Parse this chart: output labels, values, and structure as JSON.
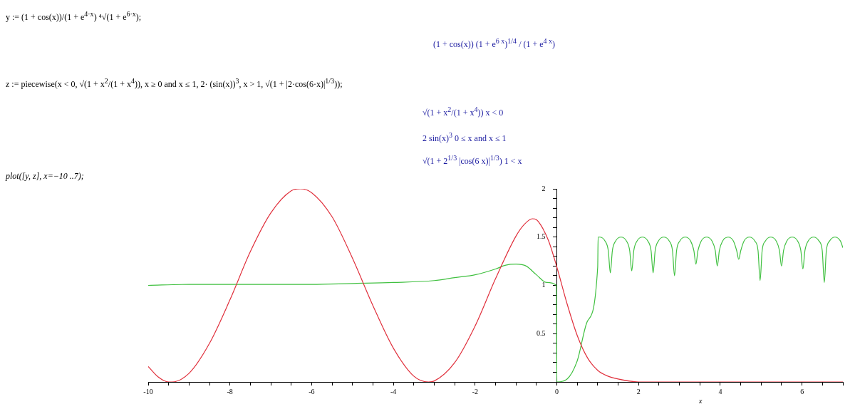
{
  "chart_data": {
    "type": "line",
    "annotations": [
      "y := (1 + cos(x))/(1 + e$^{4·x}$) ⁴√(1 + e$^{6·x}$);",
      "(1 + cos(x)) (1 + e$^{6 x}$)$^{1/4}$ / (1 + e$^{4 x}$)",
      "z := piecewise(x < 0, √(1 + x$^{2}$/(1 + x$^{4}$)), x ≥ 0 and x ≤ 1, 2· (sin(x))$^{3}$, x > 1, √(1 + |2·cos(6·x)|$^{1/3}$));",
      "√(1 + x$^{2}$/(1 + x$^{4}$))     x < 0",
      "2 sin(x)$^{3}$     0 ≤ x and x ≤ 1",
      "√(1 + 2$^{1/3}$ |cos(6 x)|$^{1/3}$)     1 < x",
      "plot([y, z], x=−10 ..7);"
    ],
    "xlabel": "x",
    "xlim": [
      -10,
      7
    ],
    "xticks": [
      -10,
      {
        "value": -9.5,
        "label": null
      },
      {
        "value": -9,
        "label": null
      },
      {
        "value": -8.5,
        "label": null
      },
      -8,
      {
        "value": -7.5,
        "label": null
      },
      {
        "value": -7,
        "label": null
      },
      {
        "value": -6.5,
        "label": null
      },
      -6,
      {
        "value": -5.5,
        "label": null
      },
      {
        "value": -5,
        "label": null
      },
      {
        "value": -4.5,
        "label": null
      },
      -4,
      {
        "value": -3.5,
        "label": null
      },
      {
        "value": -3,
        "label": null
      },
      {
        "value": -2.5,
        "label": null
      },
      -2,
      {
        "value": -1.5,
        "label": null
      },
      {
        "value": -1,
        "label": null
      },
      {
        "value": -0.5,
        "label": null
      },
      0,
      {
        "value": 0.5,
        "label": null
      },
      {
        "value": 1,
        "label": null
      },
      {
        "value": 1.5,
        "label": null
      },
      2,
      {
        "value": 2.5,
        "label": null
      },
      {
        "value": 3,
        "label": null
      },
      {
        "value": 3.5,
        "label": null
      },
      4,
      {
        "value": 4.5,
        "label": null
      },
      {
        "value": 5,
        "label": null
      },
      {
        "value": 5.5,
        "label": null
      },
      6,
      {
        "value": 6.5,
        "label": null
      },
      {
        "value": 7,
        "label": null
      }
    ],
    "ylim": [
      0,
      2
    ],
    "yticks": [
      {
        "value": 0.1,
        "label": null
      },
      {
        "value": 0.2,
        "label": null
      },
      {
        "value": 0.3,
        "label": null
      },
      {
        "value": 0.4,
        "label": null
      },
      0.5,
      {
        "value": 0.6,
        "label": null
      },
      {
        "value": 0.7,
        "label": null
      },
      {
        "value": 0.8,
        "label": null
      },
      {
        "value": 0.9,
        "label": null
      },
      1,
      {
        "value": 1.1,
        "label": null
      },
      {
        "value": 1.2,
        "label": null
      },
      {
        "value": 1.3,
        "label": null
      },
      {
        "value": 1.4,
        "label": null
      },
      1.5,
      {
        "value": 1.6,
        "label": null
      },
      {
        "value": 1.7,
        "label": null
      },
      {
        "value": 1.8,
        "label": null
      },
      {
        "value": 1.9,
        "label": null
      },
      2
    ],
    "grid": false,
    "legend": false,
    "marker": "none",
    "line_style": "solid",
    "series": [
      {
        "color": "#e0303c",
        "x": [
          -10,
          -9.75,
          -9.5,
          -9.42,
          -9,
          -8.5,
          -8,
          -7.5,
          -7,
          -6.5,
          -6.28,
          -6,
          -5.5,
          -5,
          -4.5,
          -4,
          -3.5,
          -3.14,
          -3,
          -2.5,
          -2,
          -1.5,
          -1,
          -0.8,
          -0.6,
          -0.5,
          -0.4,
          -0.2,
          0,
          0.25,
          0.5,
          0.75,
          1,
          1.25,
          1.5,
          2,
          3,
          4,
          5,
          6,
          7
        ],
        "values": [
          0.16,
          0.05,
          0.0,
          0.0,
          0.09,
          0.4,
          0.85,
          1.35,
          1.75,
          1.98,
          2.0,
          1.96,
          1.71,
          1.28,
          0.79,
          0.35,
          0.06,
          0.0,
          0.01,
          0.2,
          0.58,
          1.07,
          1.51,
          1.63,
          1.69,
          1.68,
          1.63,
          1.46,
          1.19,
          0.81,
          0.48,
          0.25,
          0.12,
          0.06,
          0.03,
          0.0,
          0.0,
          0.0,
          0.0,
          0.0,
          0.0
        ]
      },
      {
        "color": "#40c040",
        "x": [
          -10,
          -9,
          -8,
          -7,
          -6,
          -5,
          -4,
          -3,
          -2.5,
          -2,
          -1.5,
          -1.25,
          -1,
          -0.75,
          -0.5,
          -0.25,
          -0.01,
          0,
          0.25,
          0.5,
          0.75,
          1,
          1.01,
          1.047,
          1.179,
          1.259,
          1.309,
          1.359,
          1.439,
          1.571,
          1.703,
          1.783,
          1.833,
          1.883,
          1.963,
          2.094,
          2.226,
          2.306,
          2.356,
          2.406,
          2.486,
          2.618,
          2.75,
          2.83,
          2.88,
          2.93,
          3.01,
          3.142,
          3.274,
          3.353,
          3.403,
          3.453,
          3.533,
          3.665,
          3.797,
          3.877,
          3.927,
          3.977,
          4.057,
          4.189,
          4.321,
          4.401,
          4.451,
          4.501,
          4.581,
          4.712,
          4.844,
          4.924,
          4.974,
          5.024,
          5.104,
          5.236,
          5.368,
          5.448,
          5.498,
          5.548,
          5.628,
          5.76,
          5.892,
          5.971,
          6.021,
          6.071,
          6.151,
          6.283,
          6.415,
          6.495,
          6.545,
          6.595,
          6.675,
          6.807,
          6.939,
          7
        ],
        "values": [
          1.0,
          1.01,
          1.01,
          1.01,
          1.01,
          1.02,
          1.03,
          1.05,
          1.08,
          1.11,
          1.17,
          1.21,
          1.22,
          1.2,
          1.11,
          1.03,
          1.0,
          0.0,
          0.03,
          0.22,
          0.63,
          1.19,
          1.5,
          1.5,
          1.46,
          1.36,
          1.13,
          1.36,
          1.46,
          1.5,
          1.46,
          1.36,
          1.15,
          1.36,
          1.46,
          1.5,
          1.46,
          1.36,
          1.13,
          1.36,
          1.46,
          1.5,
          1.46,
          1.36,
          1.1,
          1.36,
          1.46,
          1.5,
          1.46,
          1.36,
          1.22,
          1.36,
          1.46,
          1.5,
          1.46,
          1.36,
          1.2,
          1.36,
          1.46,
          1.5,
          1.46,
          1.36,
          1.27,
          1.36,
          1.46,
          1.5,
          1.46,
          1.36,
          1.05,
          1.36,
          1.46,
          1.5,
          1.46,
          1.36,
          1.2,
          1.36,
          1.46,
          1.5,
          1.46,
          1.36,
          1.17,
          1.36,
          1.46,
          1.5,
          1.46,
          1.36,
          1.03,
          1.36,
          1.46,
          1.5,
          1.46,
          1.39
        ]
      }
    ]
  }
}
